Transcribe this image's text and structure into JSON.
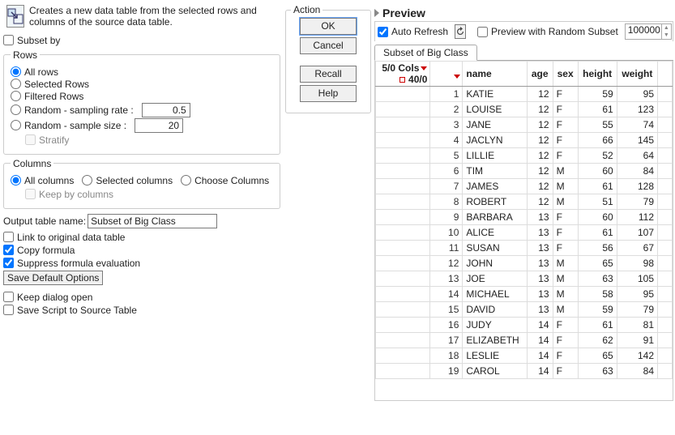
{
  "description": "Creates a new data table from the selected rows and columns of the source data table.",
  "subset_by_label": "Subset by",
  "rows": {
    "legend": "Rows",
    "all": "All rows",
    "selected": "Selected Rows",
    "filtered": "Filtered Rows",
    "sampling_rate_label": "Random - sampling rate :",
    "sampling_rate_value": "0.5",
    "sample_size_label": "Random - sample size :",
    "sample_size_value": "20",
    "stratify": "Stratify"
  },
  "columns": {
    "legend": "Columns",
    "all": "All columns",
    "selected": "Selected columns",
    "choose": "Choose Columns",
    "keep": "Keep by columns"
  },
  "output_name_label": "Output table name:",
  "output_name_value": "Subset of Big Class",
  "link_label": "Link to original data table",
  "copy_label": "Copy formula",
  "suppress_label": "Suppress formula evaluation",
  "save_defaults": "Save Default Options",
  "keep_open": "Keep dialog open",
  "save_script": "Save Script to Source Table",
  "action": {
    "legend": "Action",
    "ok": "OK",
    "cancel": "Cancel",
    "recall": "Recall",
    "help": "Help"
  },
  "preview": {
    "title": "Preview",
    "auto_refresh": "Auto Refresh",
    "random_subset": "Preview with Random Subset",
    "random_value": "100000",
    "tab": "Subset of Big Class",
    "cols_meta": "5/0 Cols",
    "rows_meta": "40/0",
    "headers": [
      "name",
      "age",
      "sex",
      "height",
      "weight"
    ],
    "data": [
      [
        "KATIE",
        "12",
        "F",
        "59",
        "95"
      ],
      [
        "LOUISE",
        "12",
        "F",
        "61",
        "123"
      ],
      [
        "JANE",
        "12",
        "F",
        "55",
        "74"
      ],
      [
        "JACLYN",
        "12",
        "F",
        "66",
        "145"
      ],
      [
        "LILLIE",
        "12",
        "F",
        "52",
        "64"
      ],
      [
        "TIM",
        "12",
        "M",
        "60",
        "84"
      ],
      [
        "JAMES",
        "12",
        "M",
        "61",
        "128"
      ],
      [
        "ROBERT",
        "12",
        "M",
        "51",
        "79"
      ],
      [
        "BARBARA",
        "13",
        "F",
        "60",
        "112"
      ],
      [
        "ALICE",
        "13",
        "F",
        "61",
        "107"
      ],
      [
        "SUSAN",
        "13",
        "F",
        "56",
        "67"
      ],
      [
        "JOHN",
        "13",
        "M",
        "65",
        "98"
      ],
      [
        "JOE",
        "13",
        "M",
        "63",
        "105"
      ],
      [
        "MICHAEL",
        "13",
        "M",
        "58",
        "95"
      ],
      [
        "DAVID",
        "13",
        "M",
        "59",
        "79"
      ],
      [
        "JUDY",
        "14",
        "F",
        "61",
        "81"
      ],
      [
        "ELIZABETH",
        "14",
        "F",
        "62",
        "91"
      ],
      [
        "LESLIE",
        "14",
        "F",
        "65",
        "142"
      ],
      [
        "CAROL",
        "14",
        "F",
        "63",
        "84"
      ]
    ]
  }
}
